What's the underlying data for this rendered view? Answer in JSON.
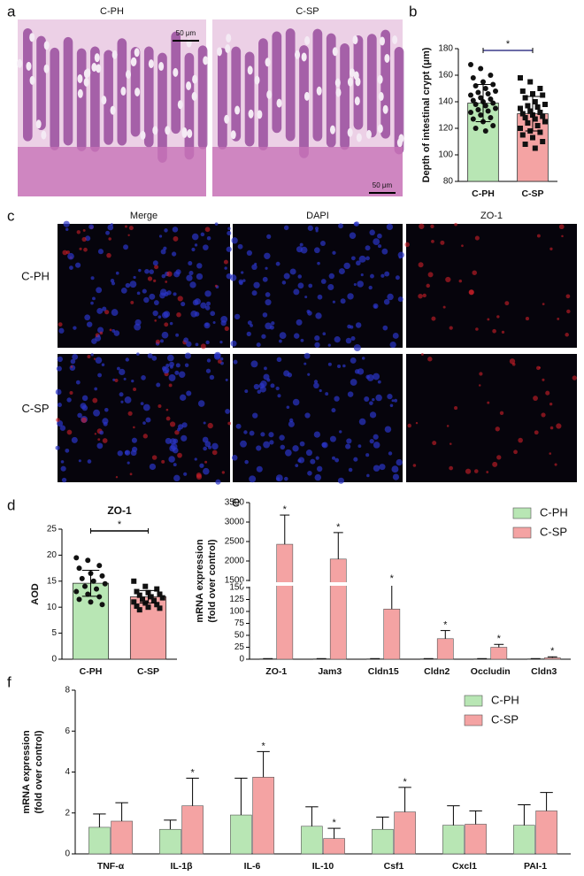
{
  "figure": {
    "panel_labels": [
      "a",
      "b",
      "c",
      "d",
      "e",
      "f"
    ],
    "histology": {
      "images": [
        "C-PH",
        "C-SP"
      ],
      "scale_bar": "50 μm"
    },
    "fluorescence": {
      "columns": [
        "Merge",
        "DAPI",
        "ZO-1"
      ],
      "rows": [
        "C-PH",
        "C-SP"
      ]
    }
  },
  "chart_data": [
    {
      "type": "bar",
      "ylabel": "Depth of intestinal crypt (μm)",
      "categories": [
        "C-PH",
        "C-SP"
      ],
      "colors": [
        "#b8e6b4",
        "#f4a3a3"
      ],
      "values": [
        139,
        131
      ],
      "errors": [
        14,
        13
      ],
      "points": [
        [
          168,
          165,
          160,
          158,
          155,
          153,
          152,
          150,
          148,
          147,
          146,
          145,
          143,
          142,
          141,
          140,
          139,
          138,
          137,
          135,
          134,
          133,
          132,
          130,
          128,
          127,
          125,
          122,
          120,
          118
        ],
        [
          158,
          155,
          150,
          148,
          146,
          145,
          143,
          140,
          138,
          137,
          136,
          135,
          133,
          132,
          131,
          130,
          129,
          128,
          127,
          125,
          124,
          122,
          120,
          118,
          117,
          115,
          113,
          110,
          108,
          105
        ]
      ],
      "significance": "*",
      "ylim": [
        80,
        180
      ],
      "yticks": [
        80,
        100,
        120,
        140,
        160,
        180
      ]
    },
    {
      "type": "bar",
      "title": "ZO-1",
      "ylabel": "AOD",
      "categories": [
        "C-PH",
        "C-SP"
      ],
      "colors": [
        "#b8e6b4",
        "#f4a3a3"
      ],
      "values": [
        14.6,
        12
      ],
      "errors": [
        2.5,
        1.2
      ],
      "points": [
        [
          19.5,
          19,
          18,
          17.5,
          16.5,
          16,
          15.5,
          15,
          14.5,
          14,
          13.5,
          13,
          12.5,
          12,
          11.5,
          11,
          10.5
        ],
        [
          15,
          14,
          13.5,
          13,
          12.8,
          12.5,
          12.3,
          12,
          11.8,
          11.5,
          11.3,
          11,
          10.8,
          10.5,
          10.2,
          10,
          9.8,
          9.5
        ]
      ],
      "significance": "*",
      "ylim": [
        0,
        25
      ],
      "yticks": [
        0,
        5,
        10,
        15,
        20,
        25
      ]
    },
    {
      "type": "grouped_bar",
      "ylabel": [
        "mRNA expression",
        "(fold over control)"
      ],
      "categories": [
        "ZO-1",
        "Jam3",
        "Cldn15",
        "Cldn2",
        "Occludin",
        "Cldn3"
      ],
      "series": [
        {
          "name": "C-PH",
          "color": "#b8e6b4",
          "values": [
            1,
            1,
            1,
            1,
            1,
            1
          ],
          "errors": [
            0.3,
            0.3,
            0.3,
            0.3,
            0.3,
            0.3
          ]
        },
        {
          "name": "C-SP",
          "color": "#f4a3a3",
          "values": [
            2430,
            2050,
            105,
            43,
            25,
            3
          ],
          "errors": [
            750,
            680,
            65,
            17,
            6,
            2
          ],
          "significance": [
            "*",
            "*",
            "*",
            "*",
            "*",
            "*"
          ]
        }
      ],
      "ylim": [
        0,
        3500
      ],
      "ybreak": [
        150,
        1500
      ],
      "yticks": [
        0,
        25,
        50,
        75,
        100,
        125,
        150,
        1500,
        2000,
        2500,
        3000,
        3500
      ]
    },
    {
      "type": "grouped_bar",
      "ylabel": [
        "mRNA expression",
        "(fold over control)"
      ],
      "categories": [
        "TNF-α",
        "IL-1β",
        "IL-6",
        "IL-10",
        "Csf1",
        "Cxcl1",
        "PAI-1"
      ],
      "series": [
        {
          "name": "C-PH",
          "color": "#b8e6b4",
          "values": [
            1.3,
            1.2,
            1.9,
            1.35,
            1.2,
            1.4,
            1.4
          ],
          "errors": [
            0.65,
            0.45,
            1.8,
            0.95,
            0.6,
            0.95,
            1.0
          ]
        },
        {
          "name": "C-SP",
          "color": "#f4a3a3",
          "values": [
            1.6,
            2.35,
            3.75,
            0.75,
            2.05,
            1.45,
            2.1
          ],
          "errors": [
            0.9,
            1.35,
            1.25,
            0.5,
            1.2,
            0.65,
            0.9
          ],
          "significance": [
            null,
            "*",
            "*",
            "*",
            "*",
            null,
            null
          ]
        }
      ],
      "ylim": [
        0,
        8
      ],
      "yticks": [
        0,
        2,
        4,
        6,
        8
      ]
    }
  ]
}
